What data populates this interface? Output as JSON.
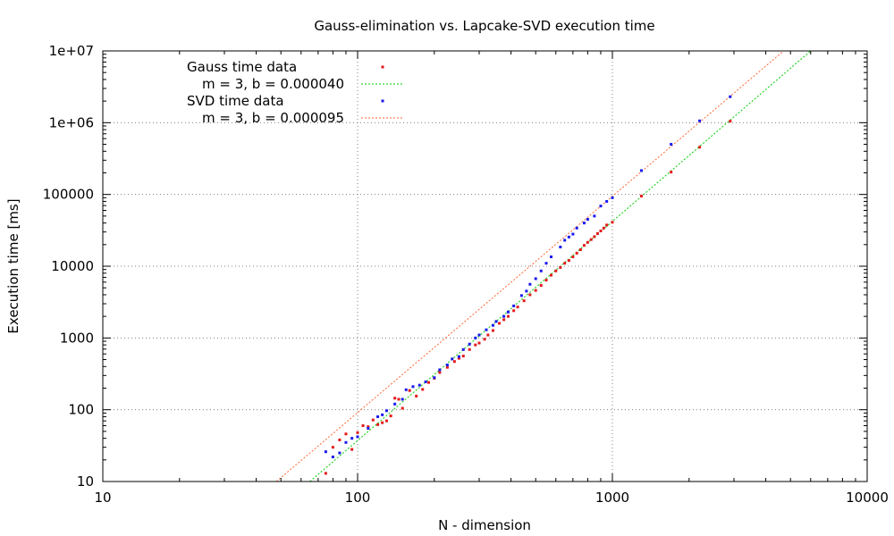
{
  "chart_data": {
    "type": "scatter",
    "title": "Gauss-elimination vs. Lapcake-SVD execution time",
    "xlabel": "N - dimension",
    "ylabel": "Execution time [ms]",
    "xscale": "log",
    "yscale": "log",
    "xlim": [
      10,
      10000
    ],
    "ylim": [
      10,
      10000000
    ],
    "x_ticks": [
      10,
      100,
      1000,
      10000
    ],
    "x_tick_labels": [
      "10",
      "100",
      "1000",
      "10000"
    ],
    "y_ticks": [
      10,
      100,
      1000,
      10000,
      100000,
      1000000,
      10000000
    ],
    "y_tick_labels": [
      "10",
      "100",
      "1000",
      "10000",
      "100000",
      "1e+06",
      "1e+07"
    ],
    "grid": true,
    "legend_position": "top-left",
    "series": [
      {
        "name": "Gauss time data",
        "kind": "points",
        "color": "#e41a1c",
        "points": [
          [
            75,
            13
          ],
          [
            80,
            30
          ],
          [
            85,
            38
          ],
          [
            90,
            46
          ],
          [
            95,
            28
          ],
          [
            100,
            48
          ],
          [
            105,
            60
          ],
          [
            110,
            58
          ],
          [
            115,
            72
          ],
          [
            120,
            62
          ],
          [
            125,
            66
          ],
          [
            130,
            70
          ],
          [
            135,
            82
          ],
          [
            140,
            145
          ],
          [
            145,
            140
          ],
          [
            150,
            105
          ],
          [
            160,
            185
          ],
          [
            170,
            155
          ],
          [
            180,
            192
          ],
          [
            190,
            240
          ],
          [
            200,
            275
          ],
          [
            210,
            330
          ],
          [
            225,
            390
          ],
          [
            240,
            470
          ],
          [
            250,
            520
          ],
          [
            260,
            560
          ],
          [
            275,
            690
          ],
          [
            290,
            800
          ],
          [
            300,
            850
          ],
          [
            315,
            960
          ],
          [
            325,
            1100
          ],
          [
            340,
            1270
          ],
          [
            360,
            1600
          ],
          [
            375,
            1800
          ],
          [
            390,
            2000
          ],
          [
            410,
            2400
          ],
          [
            425,
            2700
          ],
          [
            450,
            3300
          ],
          [
            475,
            4000
          ],
          [
            500,
            4600
          ],
          [
            525,
            5400
          ],
          [
            550,
            6400
          ],
          [
            575,
            7500
          ],
          [
            600,
            8600
          ],
          [
            625,
            9600
          ],
          [
            650,
            11000
          ],
          [
            675,
            12000
          ],
          [
            700,
            13500
          ],
          [
            725,
            15200
          ],
          [
            750,
            17000
          ],
          [
            775,
            19500
          ],
          [
            800,
            21500
          ],
          [
            825,
            23500
          ],
          [
            850,
            25800
          ],
          [
            875,
            28500
          ],
          [
            900,
            31000
          ],
          [
            925,
            34000
          ],
          [
            950,
            37500
          ],
          [
            1000,
            41000
          ],
          [
            1300,
            95000
          ],
          [
            1700,
            205000
          ],
          [
            2200,
            455000
          ],
          [
            2900,
            1050000
          ]
        ]
      },
      {
        "name": "m = 3, b = 0.000040",
        "kind": "line",
        "color": "#00cc00",
        "points": [
          [
            65,
            10
          ],
          [
            6000,
            10000000
          ]
        ]
      },
      {
        "name": "SVD time data",
        "kind": "points",
        "color": "#1a1aee",
        "points": [
          [
            75,
            26
          ],
          [
            80,
            22
          ],
          [
            85,
            25
          ],
          [
            90,
            35
          ],
          [
            95,
            40
          ],
          [
            100,
            42
          ],
          [
            110,
            55
          ],
          [
            120,
            80
          ],
          [
            125,
            85
          ],
          [
            130,
            97
          ],
          [
            140,
            120
          ],
          [
            150,
            140
          ],
          [
            155,
            190
          ],
          [
            165,
            210
          ],
          [
            175,
            220
          ],
          [
            185,
            245
          ],
          [
            200,
            280
          ],
          [
            210,
            360
          ],
          [
            225,
            420
          ],
          [
            235,
            510
          ],
          [
            250,
            550
          ],
          [
            260,
            690
          ],
          [
            275,
            820
          ],
          [
            290,
            1000
          ],
          [
            300,
            1100
          ],
          [
            320,
            1300
          ],
          [
            340,
            1500
          ],
          [
            350,
            1700
          ],
          [
            375,
            2000
          ],
          [
            390,
            2300
          ],
          [
            410,
            2800
          ],
          [
            440,
            3900
          ],
          [
            460,
            4500
          ],
          [
            475,
            5600
          ],
          [
            500,
            6700
          ],
          [
            525,
            8600
          ],
          [
            550,
            11000
          ],
          [
            575,
            13500
          ],
          [
            625,
            18500
          ],
          [
            650,
            23000
          ],
          [
            675,
            25500
          ],
          [
            700,
            28000
          ],
          [
            725,
            34000
          ],
          [
            775,
            40000
          ],
          [
            800,
            45000
          ],
          [
            850,
            50000
          ],
          [
            900,
            69000
          ],
          [
            950,
            80000
          ],
          [
            1000,
            90000
          ],
          [
            1300,
            215000
          ],
          [
            1700,
            500000
          ],
          [
            2200,
            1060000
          ],
          [
            2900,
            2300000
          ]
        ]
      },
      {
        "name": "m = 3, b = 0.000095",
        "kind": "line",
        "color": "#ff6633",
        "points": [
          [
            48,
            10
          ],
          [
            4700,
            10000000
          ]
        ]
      }
    ]
  }
}
